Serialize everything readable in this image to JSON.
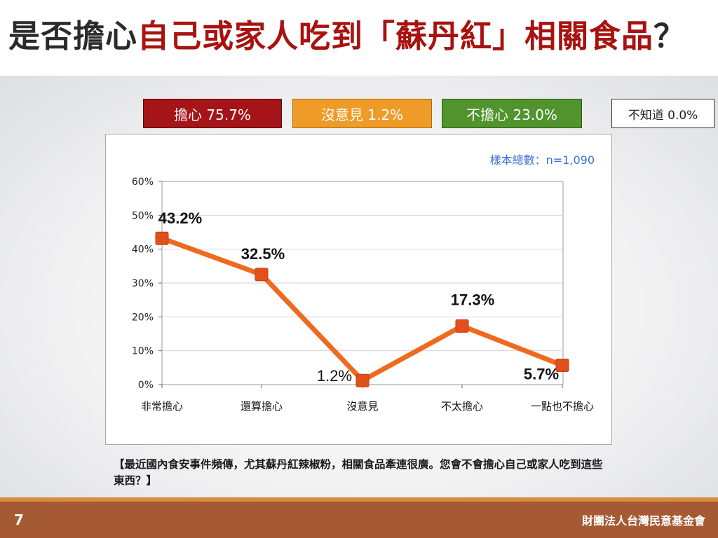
{
  "title": {
    "prefix": "是否擔心",
    "highlight": "自己或家人吃到「蘇丹紅」相關食品",
    "suffix": "？"
  },
  "legend": {
    "worried": "擔心 75.7%",
    "no_opinion": "沒意見 1.2%",
    "not_worried": "不擔心 23.0%",
    "unknown": "不知道 0.0%"
  },
  "colors": {
    "worried": "#a51418",
    "no_opinion": "#ee9b28",
    "not_worried": "#51932d",
    "line": "#ee6a1e",
    "marker": "#e0501a",
    "sample_text": "#3a6fd6"
  },
  "chart_data": {
    "type": "line",
    "sample_size_label": "樣本總數：n=1,090",
    "categories": [
      "非常擔心",
      "還算擔心",
      "沒意見",
      "不太擔心",
      "一點也不擔心"
    ],
    "values": [
      43.2,
      32.5,
      1.2,
      17.3,
      5.7
    ],
    "data_labels": [
      "43.2%",
      "32.5%",
      "1.2%",
      "17.3%",
      "5.7%"
    ],
    "y_ticks": [
      0,
      10,
      20,
      30,
      40,
      50,
      60
    ],
    "y_tick_labels": [
      "0%",
      "10%",
      "20%",
      "30%",
      "40%",
      "50%",
      "60%"
    ],
    "ylim": [
      0,
      60
    ],
    "grid": true,
    "title": "",
    "xlabel": "",
    "ylabel": ""
  },
  "note": "【最近國內食安事件頻傳，尤其蘇丹紅辣椒粉，相關食品牽連很廣。您會不會擔心自己或家人吃到這些東西？】",
  "footer": {
    "page_number": "7",
    "org_name": "財團法人台灣民意基金會"
  }
}
